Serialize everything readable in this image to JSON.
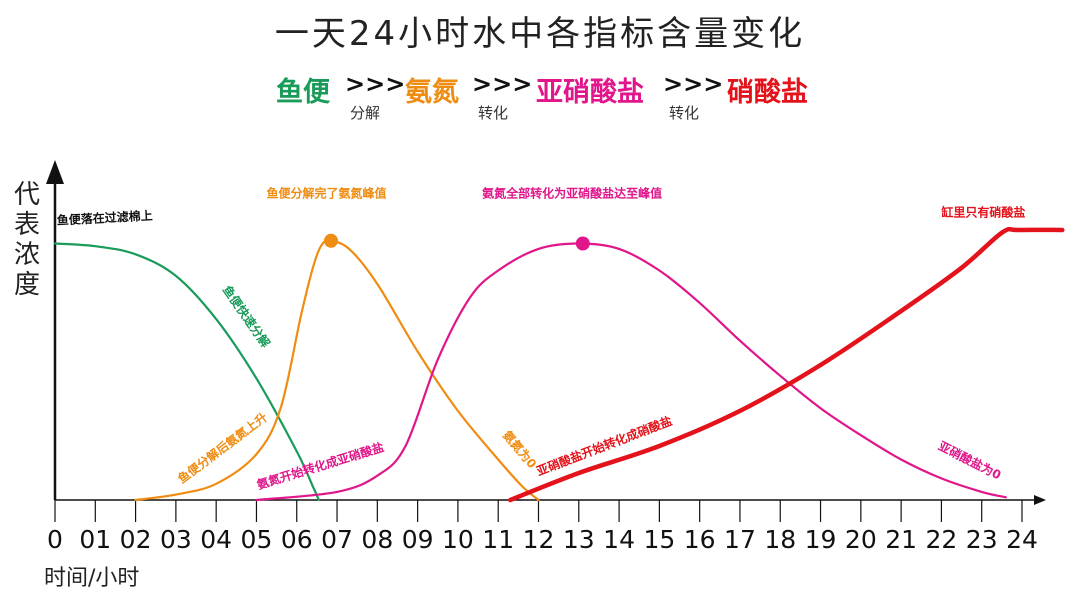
{
  "title": "一天24小时水中各指标含量变化",
  "flow": {
    "items": [
      {
        "label": "鱼便",
        "color": "#1a9b5a"
      },
      {
        "label": "氨氮",
        "color": "#ef8c12"
      },
      {
        "label": "亚硝酸盐",
        "color": "#e0168a"
      },
      {
        "label": "硝酸盐",
        "color": "#e3121b"
      }
    ],
    "arrow": ">>>",
    "steps": [
      "分解",
      "转化",
      "转化"
    ]
  },
  "chart_data": {
    "type": "line",
    "ylabel": "代表浓度",
    "xlabel": "时间/小时",
    "x_ticks": [
      "0",
      "01",
      "02",
      "03",
      "04",
      "05",
      "06",
      "07",
      "08",
      "09",
      "10",
      "11",
      "12",
      "13",
      "14",
      "15",
      "16",
      "17",
      "18",
      "19",
      "20",
      "21",
      "22",
      "23",
      "24"
    ],
    "xlim": [
      0,
      24
    ],
    "ylim": [
      0,
      1
    ],
    "series": [
      {
        "color": "#1a9b5a",
        "points": [
          [
            0,
            0.95
          ],
          [
            1,
            0.94
          ],
          [
            2,
            0.91
          ],
          [
            3,
            0.83
          ],
          [
            4,
            0.67
          ],
          [
            5,
            0.45
          ],
          [
            6,
            0.18
          ],
          [
            6.4,
            0.05
          ],
          [
            6.55,
            0.0
          ]
        ]
      },
      {
        "color": "#ef8c12",
        "points": [
          [
            2,
            0.0
          ],
          [
            3,
            0.02
          ],
          [
            4,
            0.06
          ],
          [
            5,
            0.17
          ],
          [
            5.6,
            0.34
          ],
          [
            6.1,
            0.68
          ],
          [
            6.4,
            0.86
          ],
          [
            6.6,
            0.94
          ],
          [
            6.8,
            0.96
          ],
          [
            7.3,
            0.93
          ],
          [
            8,
            0.8
          ],
          [
            9,
            0.55
          ],
          [
            10,
            0.33
          ],
          [
            11,
            0.15
          ],
          [
            11.6,
            0.05
          ],
          [
            12,
            0.0
          ]
        ]
      },
      {
        "color": "#e0168a",
        "points": [
          [
            5,
            0.0
          ],
          [
            7,
            0.03
          ],
          [
            8,
            0.09
          ],
          [
            8.7,
            0.2
          ],
          [
            9.5,
            0.52
          ],
          [
            10.3,
            0.75
          ],
          [
            11,
            0.85
          ],
          [
            12,
            0.93
          ],
          [
            13,
            0.95
          ],
          [
            14,
            0.93
          ],
          [
            15,
            0.85
          ],
          [
            16,
            0.73
          ],
          [
            17,
            0.59
          ],
          [
            18,
            0.46
          ],
          [
            19,
            0.34
          ],
          [
            20,
            0.24
          ],
          [
            21,
            0.15
          ],
          [
            22,
            0.08
          ],
          [
            23,
            0.03
          ],
          [
            23.6,
            0.01
          ]
        ]
      },
      {
        "color": "#e3121b",
        "width": 4.5,
        "points": [
          [
            11.3,
            0.0
          ],
          [
            13,
            0.1
          ],
          [
            15,
            0.2
          ],
          [
            17,
            0.33
          ],
          [
            19,
            0.5
          ],
          [
            21,
            0.7
          ],
          [
            22.5,
            0.86
          ],
          [
            23.5,
            0.99
          ],
          [
            23.9,
            1.0
          ],
          [
            25,
            1.0
          ]
        ]
      }
    ],
    "markers": [
      {
        "x": 6.85,
        "y": 0.96,
        "color": "#ef8c12"
      },
      {
        "x": 13.1,
        "y": 0.95,
        "color": "#e0168a"
      }
    ],
    "annotations": [
      {
        "text": "鱼便落在过滤棉上",
        "color": "#111111",
        "x": 0.05,
        "y": 1.02,
        "rotate": -3
      },
      {
        "text": "鱼便快速分解",
        "color": "#1a9b5a",
        "x": 4.15,
        "y": 0.78,
        "rotate": 55
      },
      {
        "text": "鱼便分解后氨氮上升",
        "color": "#ef8c12",
        "x": 3.15,
        "y": 0.06,
        "rotate": -37
      },
      {
        "text": "鱼便分解完了氨氮峰值",
        "color": "#ef8c12",
        "x": 5.25,
        "y": 1.12,
        "rotate": 0
      },
      {
        "text": "氨氮开始转化成亚硝酸盐",
        "color": "#e0168a",
        "x": 5.05,
        "y": 0.04,
        "rotate": -17
      },
      {
        "text": "氨氮全部转化为亚硝酸盐达至峰值",
        "color": "#e0168a",
        "x": 10.6,
        "y": 1.12,
        "rotate": 0
      },
      {
        "text": "氨氮为0",
        "color": "#ef8c12",
        "x": 11.1,
        "y": 0.24,
        "rotate": 50
      },
      {
        "text": "亚硝酸盐开始转化成硝酸盐",
        "color": "#e3121b",
        "x": 12.0,
        "y": 0.09,
        "rotate": -21
      },
      {
        "text": "缸里只有硝酸盐",
        "color": "#e3121b",
        "x": 22.0,
        "y": 1.05,
        "rotate": 0
      },
      {
        "text": "亚硝酸盐为0",
        "color": "#e0168a",
        "x": 21.9,
        "y": 0.19,
        "rotate": 27
      }
    ]
  }
}
